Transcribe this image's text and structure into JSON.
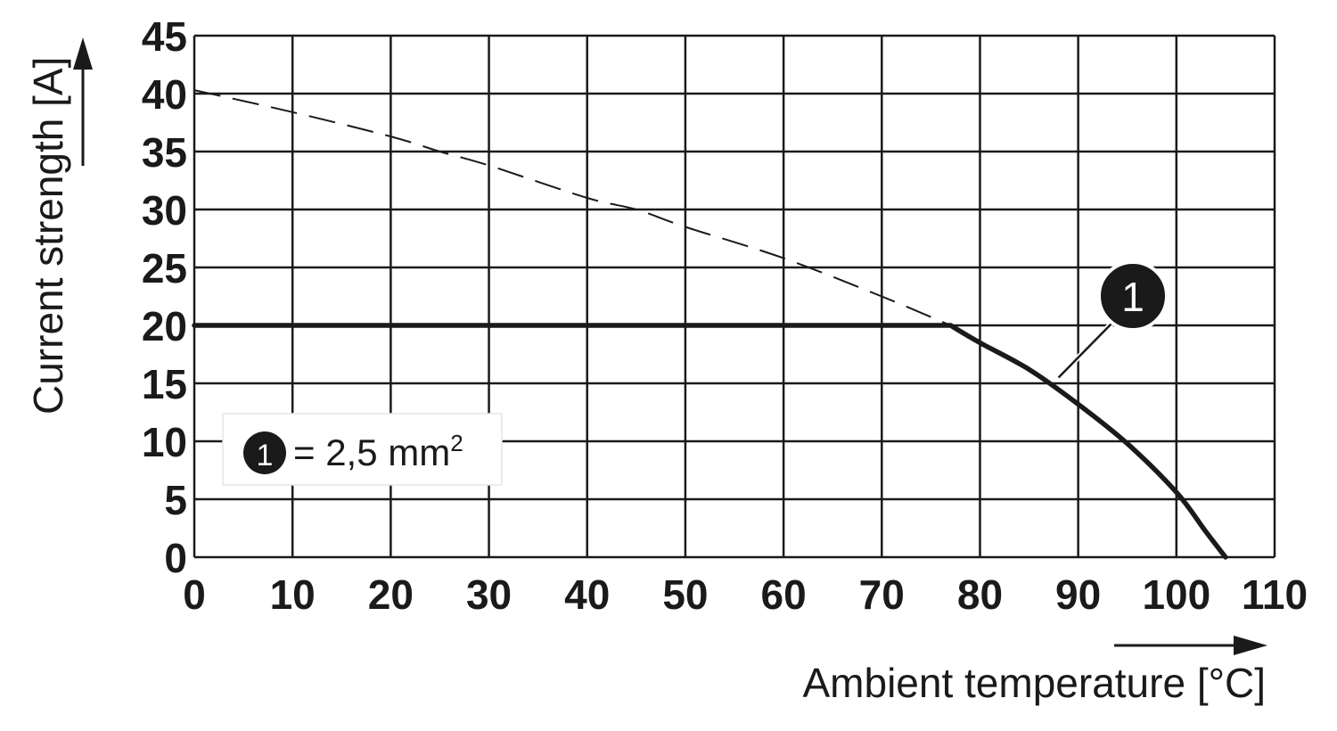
{
  "chart_data": {
    "type": "line",
    "title": "",
    "xlabel": "Ambient temperature [°C]",
    "ylabel": "Current strength [A]",
    "xlim": [
      0,
      110
    ],
    "ylim": [
      0,
      45
    ],
    "xticks": [
      0,
      10,
      20,
      30,
      40,
      50,
      60,
      70,
      80,
      90,
      100,
      110
    ],
    "yticks": [
      0,
      5,
      10,
      15,
      20,
      25,
      30,
      35,
      40,
      45
    ],
    "x_tick_labels": [
      "0",
      "10",
      "20",
      "30",
      "40",
      "50",
      "60",
      "70",
      "80",
      "90",
      "100",
      "110"
    ],
    "y_tick_labels": [
      "0",
      "5",
      "10",
      "15",
      "20",
      "25",
      "30",
      "35",
      "40",
      "45"
    ],
    "grid": true,
    "series": [
      {
        "name": "",
        "marker": "1",
        "style": "solid",
        "x": [
          0,
          77,
          80,
          85,
          90,
          95,
          100,
          103,
          105
        ],
        "y": [
          20,
          20,
          18.5,
          16.2,
          13.2,
          9.8,
          5.6,
          2.2,
          0
        ]
      },
      {
        "name": "",
        "style": "dashed",
        "x": [
          0,
          10,
          20,
          25,
          30,
          40,
          45,
          50,
          60,
          70,
          77
        ],
        "y": [
          40.3,
          38.4,
          36.3,
          35,
          33.8,
          31,
          30,
          28.5,
          25.8,
          22.5,
          20
        ]
      }
    ],
    "callout": {
      "label": "1",
      "points_to": {
        "x": 88,
        "y": 15.5
      }
    },
    "legend": {
      "badge": "1",
      "text": "= 2,5 mm",
      "superscript": "2",
      "placement": "lower-left"
    },
    "colors": {
      "line": "#1a1a1a",
      "grid": "#1a1a1a",
      "badge": "#1a1a1a"
    }
  }
}
